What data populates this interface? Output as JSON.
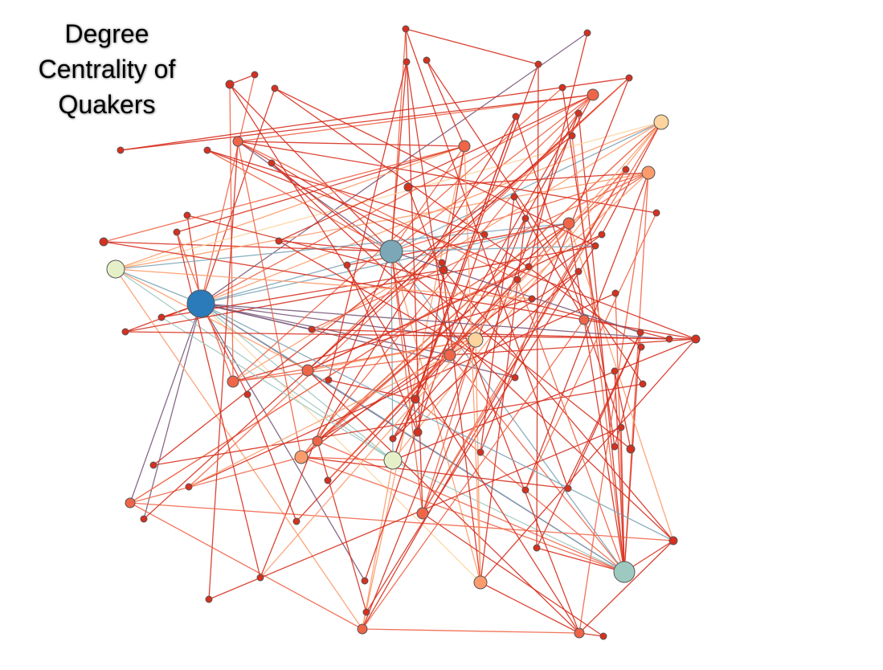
{
  "title": {
    "line1": "Degree",
    "line2": "Centrality of",
    "line3": "Quakers"
  },
  "colors": {
    "low": "#d7301f",
    "low_mid": "#ef6548",
    "mid": "#fc9c6c",
    "mid_high": "#fdd49e",
    "neutral": "#e6f0c8",
    "high": "#9ec9c0",
    "higher": "#7ba7b7",
    "top": "#2b7bba",
    "edge_purple": "#7a5a7a",
    "edge_blue": "#7fa6b8"
  }
}
